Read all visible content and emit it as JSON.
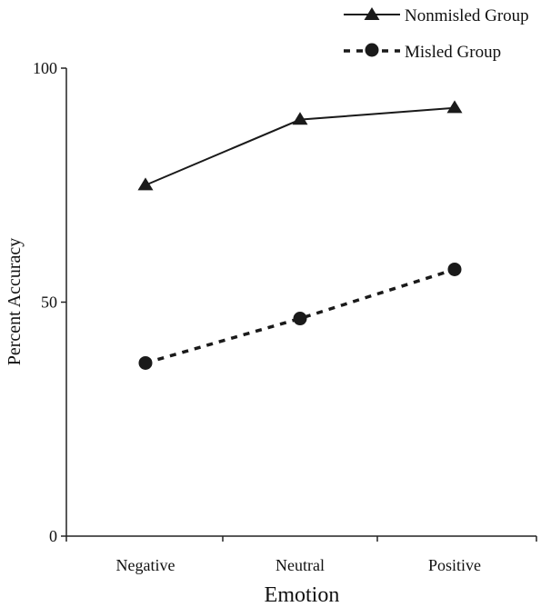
{
  "chart_data": {
    "type": "line",
    "categories": [
      "Negative",
      "Neutral",
      "Positive"
    ],
    "xlabel": "Emotion",
    "ylabel": "Percent Accuracy",
    "ylim": [
      0,
      100
    ],
    "yticks": [
      0,
      50,
      100
    ],
    "grid": false,
    "legend_position": "top-right",
    "series": [
      {
        "name": "Nonmisled Group",
        "values": [
          75,
          89,
          91.5
        ],
        "marker": "triangle",
        "line_style": "solid",
        "color": "#1a1a1a"
      },
      {
        "name": "Misled Group",
        "values": [
          37,
          46.5,
          57
        ],
        "marker": "circle",
        "line_style": "dotted",
        "color": "#1a1a1a"
      }
    ]
  }
}
